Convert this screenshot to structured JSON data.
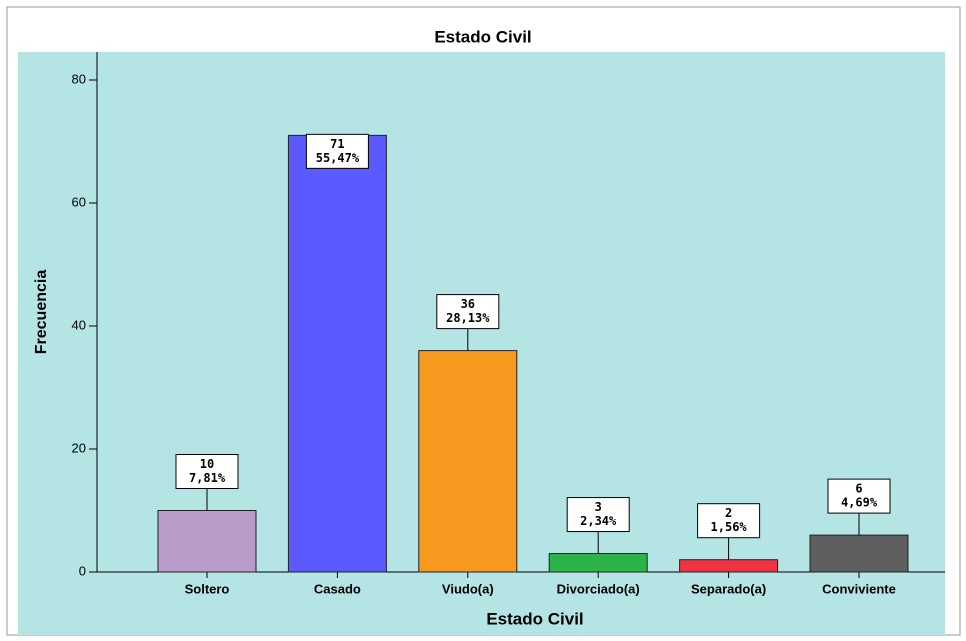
{
  "chart_data": {
    "type": "bar",
    "title": "Estado Civil",
    "x_label": "Estado Civil",
    "y_label": "Frecuencia",
    "categories": [
      "Soltero",
      "Casado",
      "Viudo(a)",
      "Divorciado(a)",
      "Separado(a)",
      "Conviviente"
    ],
    "values": [
      10,
      71,
      36,
      3,
      2,
      6
    ],
    "percent_values": [
      7.81,
      55.47,
      28.13,
      2.34,
      1.56,
      4.69
    ],
    "percent_labels": [
      "7,81%",
      "55,47%",
      "28,13%",
      "2,34%",
      "1,56%",
      "4,69%"
    ],
    "colors": [
      "#b89bc8",
      "#5a5aff",
      "#f7981f",
      "#2eb34a",
      "#ee3344",
      "#5f5f5f"
    ],
    "ylim": [
      0,
      80
    ],
    "yticks": [
      0,
      20,
      40,
      60,
      80
    ],
    "grid": false
  }
}
